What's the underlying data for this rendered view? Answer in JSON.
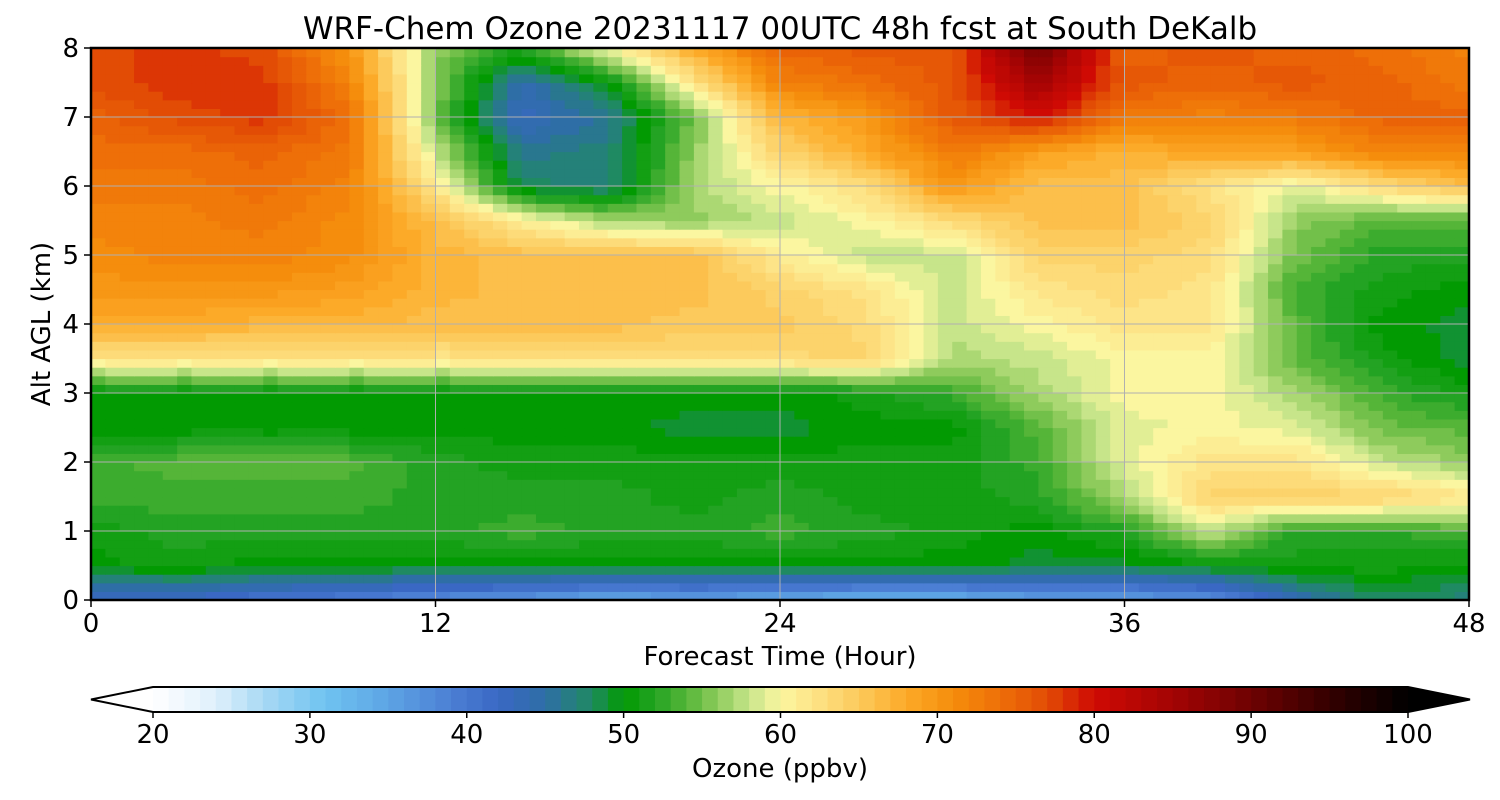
{
  "chart_data": {
    "type": "heatmap",
    "title": "WRF-Chem Ozone  20231117 00UTC 48h fcst at South DeKalb",
    "xlabel": "Forecast Time (Hour)",
    "ylabel": "Alt AGL (km)",
    "xlim": [
      0,
      48
    ],
    "ylim": [
      0,
      8
    ],
    "xticks": [
      0,
      12,
      24,
      36,
      48
    ],
    "yticks": [
      0,
      1,
      2,
      3,
      4,
      5,
      6,
      7,
      8
    ],
    "grid": true,
    "x": [
      0,
      3,
      6,
      9,
      12,
      15,
      18,
      21,
      24,
      27,
      30,
      33,
      36,
      39,
      42,
      45,
      48
    ],
    "y": [
      0,
      0.5,
      1,
      1.5,
      2,
      2.5,
      3,
      3.5,
      4,
      4.5,
      5,
      5.5,
      6,
      6.5,
      7,
      7.5,
      8
    ],
    "z": [
      [
        42,
        42,
        40,
        39,
        37,
        36,
        34,
        35,
        34,
        33,
        33,
        35,
        35,
        37,
        44,
        48,
        47
      ],
      [
        50,
        51,
        50,
        50,
        50,
        50,
        50,
        50,
        50,
        50,
        50,
        49,
        49,
        50,
        51,
        51,
        50
      ],
      [
        51,
        52,
        52,
        52,
        52,
        53,
        52,
        52,
        53,
        52,
        51,
        50,
        52,
        58,
        52,
        52,
        54
      ],
      [
        53,
        53,
        53,
        53,
        52,
        52,
        52,
        51,
        52,
        51,
        51,
        52,
        57,
        64,
        64,
        64,
        62
      ],
      [
        53,
        54,
        54,
        54,
        52,
        51,
        51,
        51,
        51,
        51,
        51,
        53,
        59,
        62,
        62,
        58,
        56
      ],
      [
        50,
        50,
        50,
        50,
        50,
        50,
        50,
        49,
        49,
        50,
        50,
        54,
        59,
        60,
        59,
        55,
        54
      ],
      [
        50,
        50,
        50,
        50,
        50,
        50,
        50,
        50,
        50,
        51,
        53,
        57,
        60,
        60,
        57,
        53,
        51
      ],
      [
        62,
        62,
        62,
        62,
        62,
        62,
        63,
        63,
        63,
        64,
        57,
        58,
        60,
        60,
        54,
        51,
        49
      ],
      [
        68,
        68,
        67,
        67,
        66,
        66,
        66,
        65,
        65,
        63,
        58,
        60,
        62,
        62,
        54,
        50,
        49
      ],
      [
        70,
        70,
        70,
        69,
        67,
        66,
        66,
        66,
        64,
        62,
        58,
        62,
        63,
        62,
        53,
        51,
        50
      ],
      [
        71,
        72,
        72,
        71,
        67,
        66,
        66,
        66,
        61,
        58,
        58,
        64,
        64,
        63,
        55,
        52,
        52
      ],
      [
        72,
        72,
        73,
        71,
        66,
        61,
        57,
        56,
        58,
        60,
        63,
        66,
        66,
        64,
        56,
        54,
        54
      ],
      [
        73,
        73,
        74,
        72,
        62,
        48,
        47,
        57,
        60,
        63,
        70,
        66,
        66,
        62,
        59,
        63,
        66
      ],
      [
        74,
        74,
        75,
        73,
        58,
        46,
        47,
        56,
        64,
        68,
        73,
        69,
        67,
        69,
        69,
        72,
        72
      ],
      [
        75,
        77,
        78,
        74,
        55,
        43,
        46,
        55,
        67,
        70,
        76,
        80,
        73,
        72,
        73,
        75,
        75
      ],
      [
        77,
        78,
        78,
        72,
        56,
        44,
        50,
        62,
        72,
        74,
        76,
        85,
        76,
        75,
        76,
        75,
        73
      ],
      [
        77,
        78,
        77,
        70,
        56,
        52,
        60,
        68,
        75,
        76,
        76,
        90,
        75,
        76,
        75,
        74,
        72
      ]
    ],
    "colorbar": {
      "label": "Ozone  (ppbv)",
      "min": 20,
      "max": 100,
      "ticks": [
        20,
        30,
        40,
        50,
        60,
        70,
        80,
        90,
        100
      ],
      "extend": "both",
      "anchors": [
        [
          20,
          "#ffffff"
        ],
        [
          24,
          "#dff0fb"
        ],
        [
          27,
          "#a9d9f4"
        ],
        [
          31,
          "#6fc3f0"
        ],
        [
          35,
          "#5da4e4"
        ],
        [
          39,
          "#4c7fd4"
        ],
        [
          42,
          "#3a68c4"
        ],
        [
          45,
          "#2e6ea6"
        ],
        [
          48,
          "#1f8a62"
        ],
        [
          50,
          "#029a02"
        ],
        [
          52,
          "#23a323"
        ],
        [
          54,
          "#55b538"
        ],
        [
          56,
          "#8ecb5c"
        ],
        [
          58,
          "#c7e58a"
        ],
        [
          60,
          "#fbf6a0"
        ],
        [
          62,
          "#fde488"
        ],
        [
          65,
          "#fcca5c"
        ],
        [
          68,
          "#fcaa28"
        ],
        [
          71,
          "#f58d0c"
        ],
        [
          74,
          "#ee6f08"
        ],
        [
          77,
          "#e24c05"
        ],
        [
          80,
          "#cf0a04"
        ],
        [
          85,
          "#a30404"
        ],
        [
          90,
          "#6e0202"
        ],
        [
          95,
          "#340000"
        ],
        [
          100,
          "#000000"
        ]
      ]
    }
  }
}
